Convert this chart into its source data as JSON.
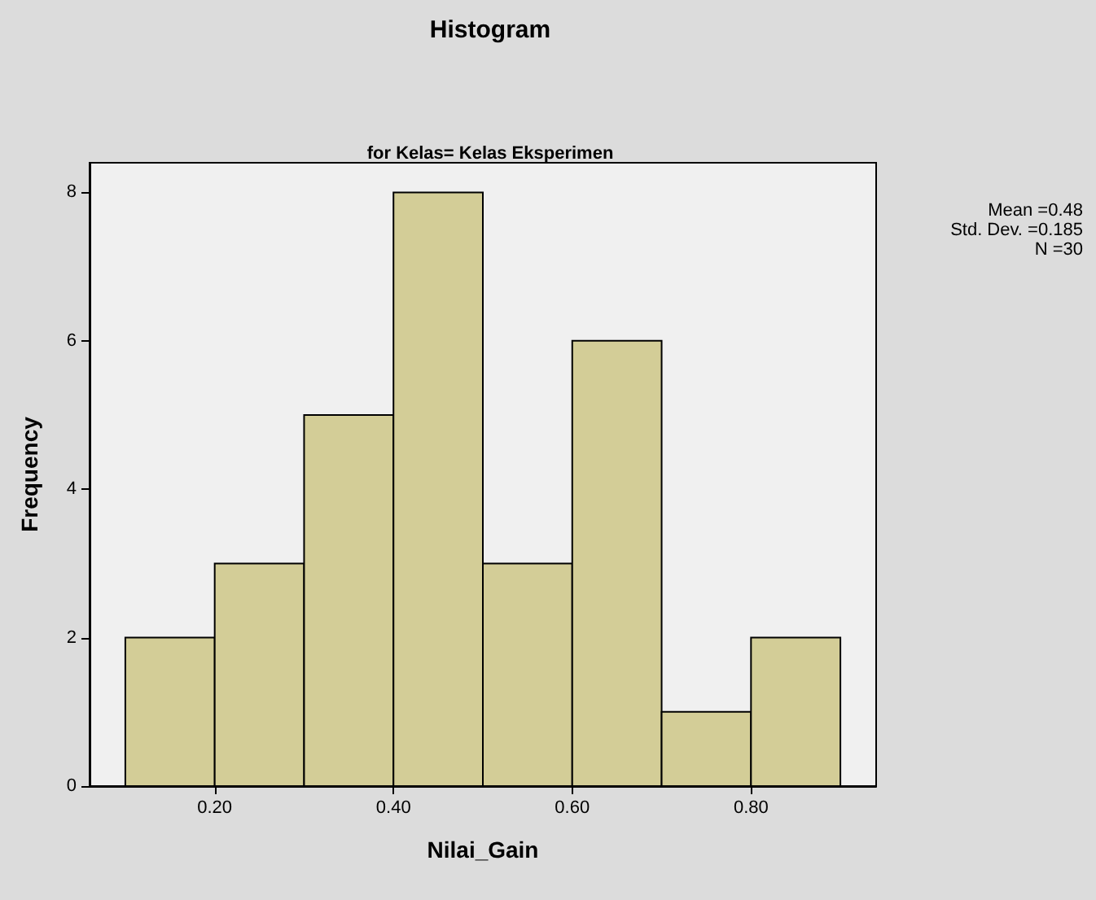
{
  "chart_data": {
    "type": "histogram",
    "title": "Histogram",
    "subtitle": "for Kelas= Kelas Eksperimen",
    "xlabel": "Nilai_Gain",
    "ylabel": "Frequency",
    "bins": [
      0.1,
      0.2,
      0.3,
      0.4,
      0.5,
      0.6,
      0.7,
      0.8,
      0.9
    ],
    "values": [
      2,
      3,
      5,
      8,
      3,
      6,
      1,
      2
    ],
    "color": "#d3cd97",
    "xlim": [
      0.06,
      0.94
    ],
    "xticks": [
      {
        "value": 0.2,
        "label": "0.20"
      },
      {
        "value": 0.4,
        "label": "0.40"
      },
      {
        "value": 0.6,
        "label": "0.60"
      },
      {
        "value": 0.8,
        "label": "0.80"
      }
    ],
    "ylim": [
      0,
      8.4
    ],
    "yticks": [
      0,
      2,
      4,
      6,
      8
    ],
    "annotations": [
      "Mean =0.48",
      "Std. Dev. =0.185",
      "N =30"
    ],
    "grid": false
  }
}
